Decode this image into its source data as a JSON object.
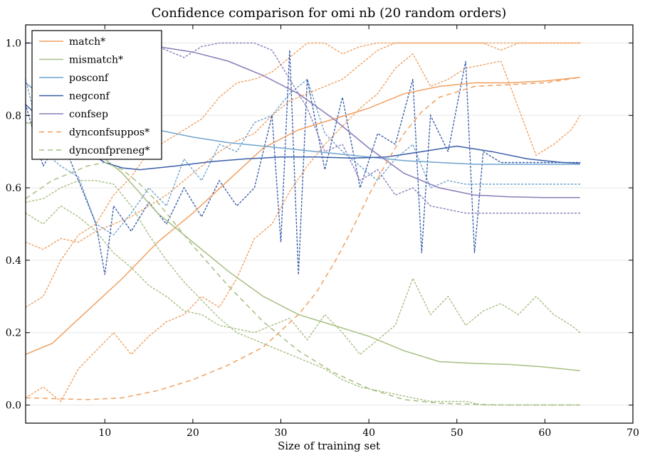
{
  "chart_data": {
    "type": "line",
    "title": "Confidence comparison for omi nb (20 random orders)",
    "xlabel": "Size of training set",
    "ylabel": "",
    "xlim": [
      1,
      70
    ],
    "ylim": [
      -0.05,
      1.05
    ],
    "xticks": [
      "10",
      "20",
      "30",
      "40",
      "50",
      "60",
      "70"
    ],
    "yticks": [
      "0.0",
      "0.2",
      "0.4",
      "0.6",
      "0.8",
      "1.0"
    ],
    "grid": true,
    "legend_position": "top-left",
    "series": [
      {
        "name": "match*",
        "color": "#f0a060",
        "style": "solid",
        "x": [
          1,
          4,
          8,
          12,
          16,
          20,
          24,
          28,
          32,
          36,
          40,
          44,
          48,
          52,
          56,
          60,
          64
        ],
        "y": [
          0.14,
          0.17,
          0.26,
          0.35,
          0.45,
          0.53,
          0.62,
          0.71,
          0.76,
          0.79,
          0.82,
          0.86,
          0.88,
          0.89,
          0.89,
          0.895,
          0.905
        ]
      },
      {
        "name": "mismatch*",
        "color": "#a6bf82",
        "style": "solid",
        "x": [
          1,
          4,
          8,
          10,
          12,
          16,
          20,
          24,
          28,
          32,
          36,
          40,
          44,
          48,
          52,
          56,
          60,
          64
        ],
        "y": [
          0.78,
          0.77,
          0.73,
          0.68,
          0.64,
          0.53,
          0.45,
          0.37,
          0.3,
          0.25,
          0.22,
          0.19,
          0.15,
          0.12,
          0.115,
          0.112,
          0.105,
          0.095
        ]
      },
      {
        "name": "posconf",
        "color": "#6fa3cf",
        "style": "solid",
        "x": [
          1,
          4,
          8,
          12,
          16,
          20,
          24,
          28,
          32,
          36,
          40,
          44,
          48,
          52,
          56,
          60,
          64
        ],
        "y": [
          0.89,
          0.83,
          0.8,
          0.78,
          0.76,
          0.74,
          0.725,
          0.715,
          0.705,
          0.695,
          0.685,
          0.675,
          0.67,
          0.665,
          0.665,
          0.665,
          0.665
        ]
      },
      {
        "name": "negconf",
        "color": "#3a5ea8",
        "style": "solid",
        "x": [
          1,
          4,
          8,
          10,
          12,
          14,
          18,
          22,
          26,
          30,
          34,
          38,
          42,
          46,
          50,
          54,
          58,
          62,
          64
        ],
        "y": [
          0.83,
          0.76,
          0.7,
          0.67,
          0.655,
          0.65,
          0.66,
          0.672,
          0.68,
          0.685,
          0.685,
          0.682,
          0.685,
          0.7,
          0.715,
          0.7,
          0.68,
          0.67,
          0.668
        ]
      },
      {
        "name": "confsep",
        "color": "#8a7cb8",
        "style": "solid",
        "x": [
          1,
          4,
          8,
          12,
          16,
          20,
          24,
          28,
          32,
          36,
          40,
          44,
          48,
          52,
          56,
          60,
          64
        ],
        "y": [
          1.0,
          1.0,
          1.0,
          1.0,
          0.99,
          0.975,
          0.95,
          0.91,
          0.86,
          0.79,
          0.71,
          0.64,
          0.6,
          0.58,
          0.575,
          0.573,
          0.573
        ]
      },
      {
        "name": "dynconfsuppos*",
        "color": "#f0a060",
        "style": "dashed",
        "x": [
          1,
          4,
          8,
          12,
          16,
          20,
          24,
          28,
          32,
          34,
          36,
          38,
          40,
          42,
          44,
          46,
          48,
          52,
          56,
          60,
          64
        ],
        "y": [
          0.02,
          0.018,
          0.015,
          0.02,
          0.04,
          0.07,
          0.11,
          0.16,
          0.25,
          0.31,
          0.39,
          0.48,
          0.58,
          0.67,
          0.75,
          0.81,
          0.85,
          0.88,
          0.885,
          0.89,
          0.905
        ]
      },
      {
        "name": "dynconfpreneg*",
        "color": "#a6bf82",
        "style": "dashed",
        "x": [
          1,
          4,
          8,
          10,
          12,
          14,
          16,
          18,
          20,
          24,
          28,
          32,
          36,
          40,
          44,
          48,
          52,
          56,
          60,
          64
        ],
        "y": [
          0.57,
          0.62,
          0.66,
          0.67,
          0.65,
          0.61,
          0.56,
          0.5,
          0.44,
          0.33,
          0.23,
          0.15,
          0.09,
          0.045,
          0.015,
          0.005,
          0.002,
          0.0,
          0.0,
          0.0
        ]
      }
    ],
    "background_series": [
      {
        "color": "#f0a060",
        "style": "dotted",
        "x": [
          1,
          3,
          5,
          7,
          9,
          11,
          13,
          15,
          17,
          19,
          21,
          23,
          25,
          27,
          29,
          31,
          33,
          35,
          37,
          39,
          41,
          43,
          45,
          47,
          49,
          51,
          53,
          55,
          57,
          59,
          61,
          63,
          64
        ],
        "y": [
          0.27,
          0.3,
          0.4,
          0.47,
          0.5,
          0.58,
          0.63,
          0.7,
          0.73,
          0.76,
          0.79,
          0.85,
          0.89,
          0.9,
          0.92,
          0.96,
          1.0,
          1.0,
          0.97,
          0.99,
          1.0,
          1.0,
          1.0,
          1.0,
          1.0,
          1.0,
          1.0,
          0.98,
          1.0,
          1.0,
          1.0,
          1.0,
          1.0
        ]
      },
      {
        "color": "#f0a060",
        "style": "dotted",
        "x": [
          1,
          3,
          5,
          7,
          9,
          11,
          13,
          15,
          17,
          19,
          21,
          23,
          25,
          27,
          29,
          31,
          33,
          35,
          37,
          39,
          41,
          43,
          45,
          47,
          49,
          51,
          53,
          55,
          57,
          59,
          61,
          63,
          64
        ],
        "y": [
          0.02,
          0.05,
          0.01,
          0.1,
          0.15,
          0.2,
          0.14,
          0.19,
          0.23,
          0.25,
          0.3,
          0.27,
          0.35,
          0.46,
          0.5,
          0.59,
          0.66,
          0.72,
          0.77,
          0.82,
          0.86,
          0.93,
          0.97,
          0.88,
          0.9,
          0.93,
          0.94,
          0.95,
          0.82,
          0.69,
          0.72,
          0.76,
          0.8
        ]
      },
      {
        "color": "#f0a060",
        "style": "dotted",
        "x": [
          1,
          3,
          5,
          7,
          9,
          11,
          13,
          15,
          17,
          19,
          21,
          23,
          25,
          27,
          29,
          31,
          33,
          35,
          37,
          39,
          41,
          43,
          45,
          47,
          49,
          51,
          53,
          55,
          57,
          59,
          61,
          63,
          64
        ],
        "y": [
          0.45,
          0.43,
          0.46,
          0.45,
          0.48,
          0.5,
          0.52,
          0.55,
          0.58,
          0.62,
          0.66,
          0.7,
          0.73,
          0.75,
          0.8,
          0.84,
          0.86,
          0.88,
          0.9,
          0.94,
          0.98,
          1.0,
          1.0,
          1.0,
          1.0,
          1.0,
          1.0,
          1.0,
          1.0,
          1.0,
          1.0,
          1.0,
          1.0
        ]
      },
      {
        "color": "#a6bf82",
        "style": "dotted",
        "x": [
          1,
          3,
          5,
          7,
          9,
          11,
          13,
          15,
          17,
          19,
          21,
          23,
          25,
          27,
          29,
          31,
          33,
          35,
          37,
          39,
          41,
          43,
          45,
          47,
          49,
          51,
          53,
          55,
          57,
          59,
          61,
          63,
          64
        ],
        "y": [
          0.53,
          0.5,
          0.55,
          0.52,
          0.48,
          0.42,
          0.38,
          0.33,
          0.3,
          0.26,
          0.25,
          0.22,
          0.21,
          0.2,
          0.22,
          0.24,
          0.18,
          0.25,
          0.2,
          0.14,
          0.18,
          0.22,
          0.35,
          0.25,
          0.3,
          0.22,
          0.26,
          0.28,
          0.25,
          0.3,
          0.25,
          0.22,
          0.2
        ]
      },
      {
        "color": "#a6bf82",
        "style": "dotted",
        "x": [
          1,
          3,
          5,
          7,
          9,
          11,
          13,
          15,
          17,
          19,
          21,
          23,
          25,
          27,
          29,
          31,
          33,
          35,
          37,
          39,
          41,
          43,
          45,
          47,
          49,
          51,
          53,
          55,
          57,
          59,
          61,
          63,
          64
        ],
        "y": [
          0.56,
          0.57,
          0.6,
          0.62,
          0.62,
          0.61,
          0.55,
          0.47,
          0.4,
          0.34,
          0.29,
          0.24,
          0.2,
          0.18,
          0.16,
          0.14,
          0.12,
          0.1,
          0.07,
          0.05,
          0.04,
          0.03,
          0.02,
          0.01,
          0.01,
          0.01,
          0.0,
          0.0,
          0.0,
          0.0,
          0.0,
          0.0,
          0.0
        ]
      },
      {
        "color": "#6fa3cf",
        "style": "dotted",
        "x": [
          1,
          3,
          5,
          7,
          9,
          11,
          13,
          15,
          17,
          19,
          21,
          23,
          25,
          27,
          29,
          31,
          33,
          35,
          37,
          39,
          41,
          43,
          45,
          47,
          49,
          51,
          53,
          55,
          57,
          59,
          61,
          63,
          64
        ],
        "y": [
          0.9,
          0.7,
          0.66,
          0.63,
          0.5,
          0.47,
          0.53,
          0.6,
          0.55,
          0.68,
          0.62,
          0.72,
          0.7,
          0.78,
          0.8,
          0.86,
          0.9,
          0.75,
          0.7,
          0.66,
          0.62,
          0.68,
          0.72,
          0.6,
          0.62,
          0.61,
          0.61,
          0.61,
          0.61,
          0.61,
          0.61,
          0.61,
          0.61
        ]
      },
      {
        "color": "#3a5ea8",
        "style": "dotted",
        "x": [
          1,
          3,
          5,
          7,
          9,
          10,
          11,
          13,
          15,
          17,
          19,
          21,
          23,
          25,
          27,
          29,
          30,
          31,
          32,
          33,
          35,
          37,
          39,
          41,
          43,
          45,
          46,
          47,
          49,
          51,
          52,
          53,
          55,
          57,
          59,
          61,
          63,
          64
        ],
        "y": [
          0.83,
          0.66,
          0.74,
          0.62,
          0.5,
          0.36,
          0.55,
          0.48,
          0.56,
          0.5,
          0.6,
          0.52,
          0.62,
          0.55,
          0.6,
          0.8,
          0.45,
          0.98,
          0.36,
          0.9,
          0.65,
          0.85,
          0.6,
          0.75,
          0.72,
          0.9,
          0.42,
          0.8,
          0.7,
          0.95,
          0.42,
          0.7,
          0.67,
          0.67,
          0.67,
          0.67,
          0.67,
          0.67
        ]
      },
      {
        "color": "#8a7cb8",
        "style": "dotted",
        "x": [
          1,
          3,
          5,
          7,
          9,
          11,
          13,
          15,
          17,
          19,
          21,
          23,
          25,
          27,
          29,
          31,
          33,
          35,
          37,
          39,
          41,
          43,
          45,
          47,
          49,
          51,
          53,
          55,
          57,
          59,
          61,
          63,
          64
        ],
        "y": [
          1.0,
          1.0,
          1.0,
          1.0,
          1.0,
          1.0,
          1.0,
          1.0,
          0.98,
          0.96,
          0.99,
          1.0,
          1.0,
          1.0,
          0.98,
          0.9,
          0.82,
          0.7,
          0.72,
          0.62,
          0.65,
          0.58,
          0.6,
          0.55,
          0.54,
          0.53,
          0.53,
          0.53,
          0.53,
          0.53,
          0.53,
          0.53,
          0.53
        ]
      }
    ]
  }
}
